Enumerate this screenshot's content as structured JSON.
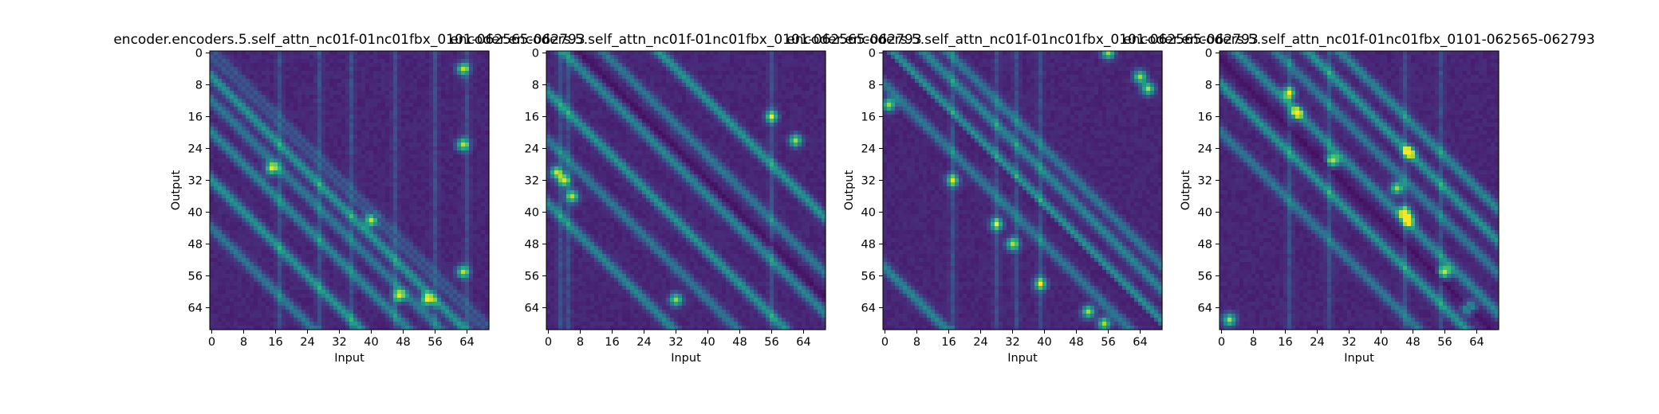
{
  "chart_data": [
    {
      "type": "heatmap",
      "title": "encoder.encoders.5.self_attn_nc01f-01nc01fbx_0101-062565-062793",
      "xlabel": "Input",
      "ylabel": "Output",
      "x_ticks": [
        "0",
        "8",
        "16",
        "24",
        "32",
        "40",
        "48",
        "56",
        "64"
      ],
      "y_ticks": [
        "0",
        "8",
        "16",
        "24",
        "32",
        "40",
        "48",
        "56",
        "64"
      ],
      "rows": 70,
      "cols": 70,
      "colormap": "viridis",
      "pattern": {
        "type": "diagonal-bands",
        "band_offsets": [
          0,
          6,
          12,
          20,
          32,
          44
        ],
        "bright_columns": [
          17,
          27,
          35,
          46,
          56,
          64
        ],
        "hotspots": [
          [
            4,
            63
          ],
          [
            23,
            63
          ],
          [
            29,
            15
          ],
          [
            42,
            40
          ],
          [
            55,
            63
          ],
          [
            61,
            47
          ],
          [
            62,
            54
          ]
        ],
        "dark_diagonal_offset": 0
      }
    },
    {
      "type": "heatmap",
      "title": "encoder.encoders.5.self_attn_nc01f-01nc01fbx_0101-062565-062793",
      "xlabel": "Input",
      "ylabel": "",
      "x_ticks": [
        "0",
        "8",
        "16",
        "24",
        "32",
        "40",
        "48",
        "56",
        "64"
      ],
      "y_ticks": [
        "0",
        "8",
        "16",
        "24",
        "32",
        "40",
        "48",
        "56",
        "64"
      ],
      "rows": 70,
      "cols": 70,
      "colormap": "viridis",
      "pattern": {
        "type": "diagonal-bands",
        "band_offsets": [
          -28,
          -14,
          -4,
          10,
          22,
          38
        ],
        "bright_columns": [
          3,
          5,
          56
        ],
        "hotspots": [
          [
            32,
            4
          ],
          [
            30,
            2
          ],
          [
            16,
            56
          ],
          [
            36,
            6
          ],
          [
            62,
            32
          ],
          [
            22,
            62
          ]
        ],
        "dark_diagonal_offset": -8
      }
    },
    {
      "type": "heatmap",
      "title": "encoder.encoders.5.self_attn_nc01f-01nc01fbx_0101-062565-062793",
      "xlabel": "Input",
      "ylabel": "Output",
      "x_ticks": [
        "0",
        "8",
        "16",
        "24",
        "32",
        "40",
        "48",
        "56",
        "64"
      ],
      "y_ticks": [
        "0",
        "8",
        "16",
        "24",
        "32",
        "40",
        "48",
        "56",
        "64"
      ],
      "rows": 70,
      "cols": 70,
      "colormap": "viridis",
      "pattern": {
        "type": "diagonal-bands",
        "band_offsets": [
          -16,
          -10,
          -2,
          8,
          54
        ],
        "bright_columns": [
          17,
          28,
          33,
          39
        ],
        "hotspots": [
          [
            13,
            1
          ],
          [
            32,
            17
          ],
          [
            43,
            28
          ],
          [
            48,
            32
          ],
          [
            58,
            39
          ],
          [
            65,
            51
          ],
          [
            68,
            55
          ],
          [
            9,
            66
          ],
          [
            6,
            64
          ],
          [
            0,
            56
          ]
        ],
        "dark_diagonal_offset": 0
      }
    },
    {
      "type": "heatmap",
      "title": "encoder.encoders.5.self_attn_nc01f-01nc01fbx_0101-062565-062793",
      "xlabel": "Input",
      "ylabel": "Output",
      "x_ticks": [
        "0",
        "8",
        "16",
        "24",
        "32",
        "40",
        "48",
        "56",
        "64"
      ],
      "y_ticks": [
        "0",
        "8",
        "16",
        "24",
        "32",
        "40",
        "48",
        "56",
        "64"
      ],
      "rows": 70,
      "cols": 70,
      "colormap": "viridis",
      "pattern": {
        "type": "diagonal-bands",
        "band_offsets": [
          -30,
          -22,
          -14,
          -4,
          8,
          20
        ],
        "bright_columns": [
          17,
          27,
          46,
          55
        ],
        "hotspots": [
          [
            10,
            17
          ],
          [
            15,
            19
          ],
          [
            27,
            28
          ],
          [
            25,
            47
          ],
          [
            42,
            47
          ],
          [
            40,
            46
          ],
          [
            55,
            56
          ],
          [
            64,
            62
          ],
          [
            34,
            44
          ],
          [
            67,
            2
          ]
        ],
        "dark_diagonal_offset": 2
      }
    }
  ]
}
